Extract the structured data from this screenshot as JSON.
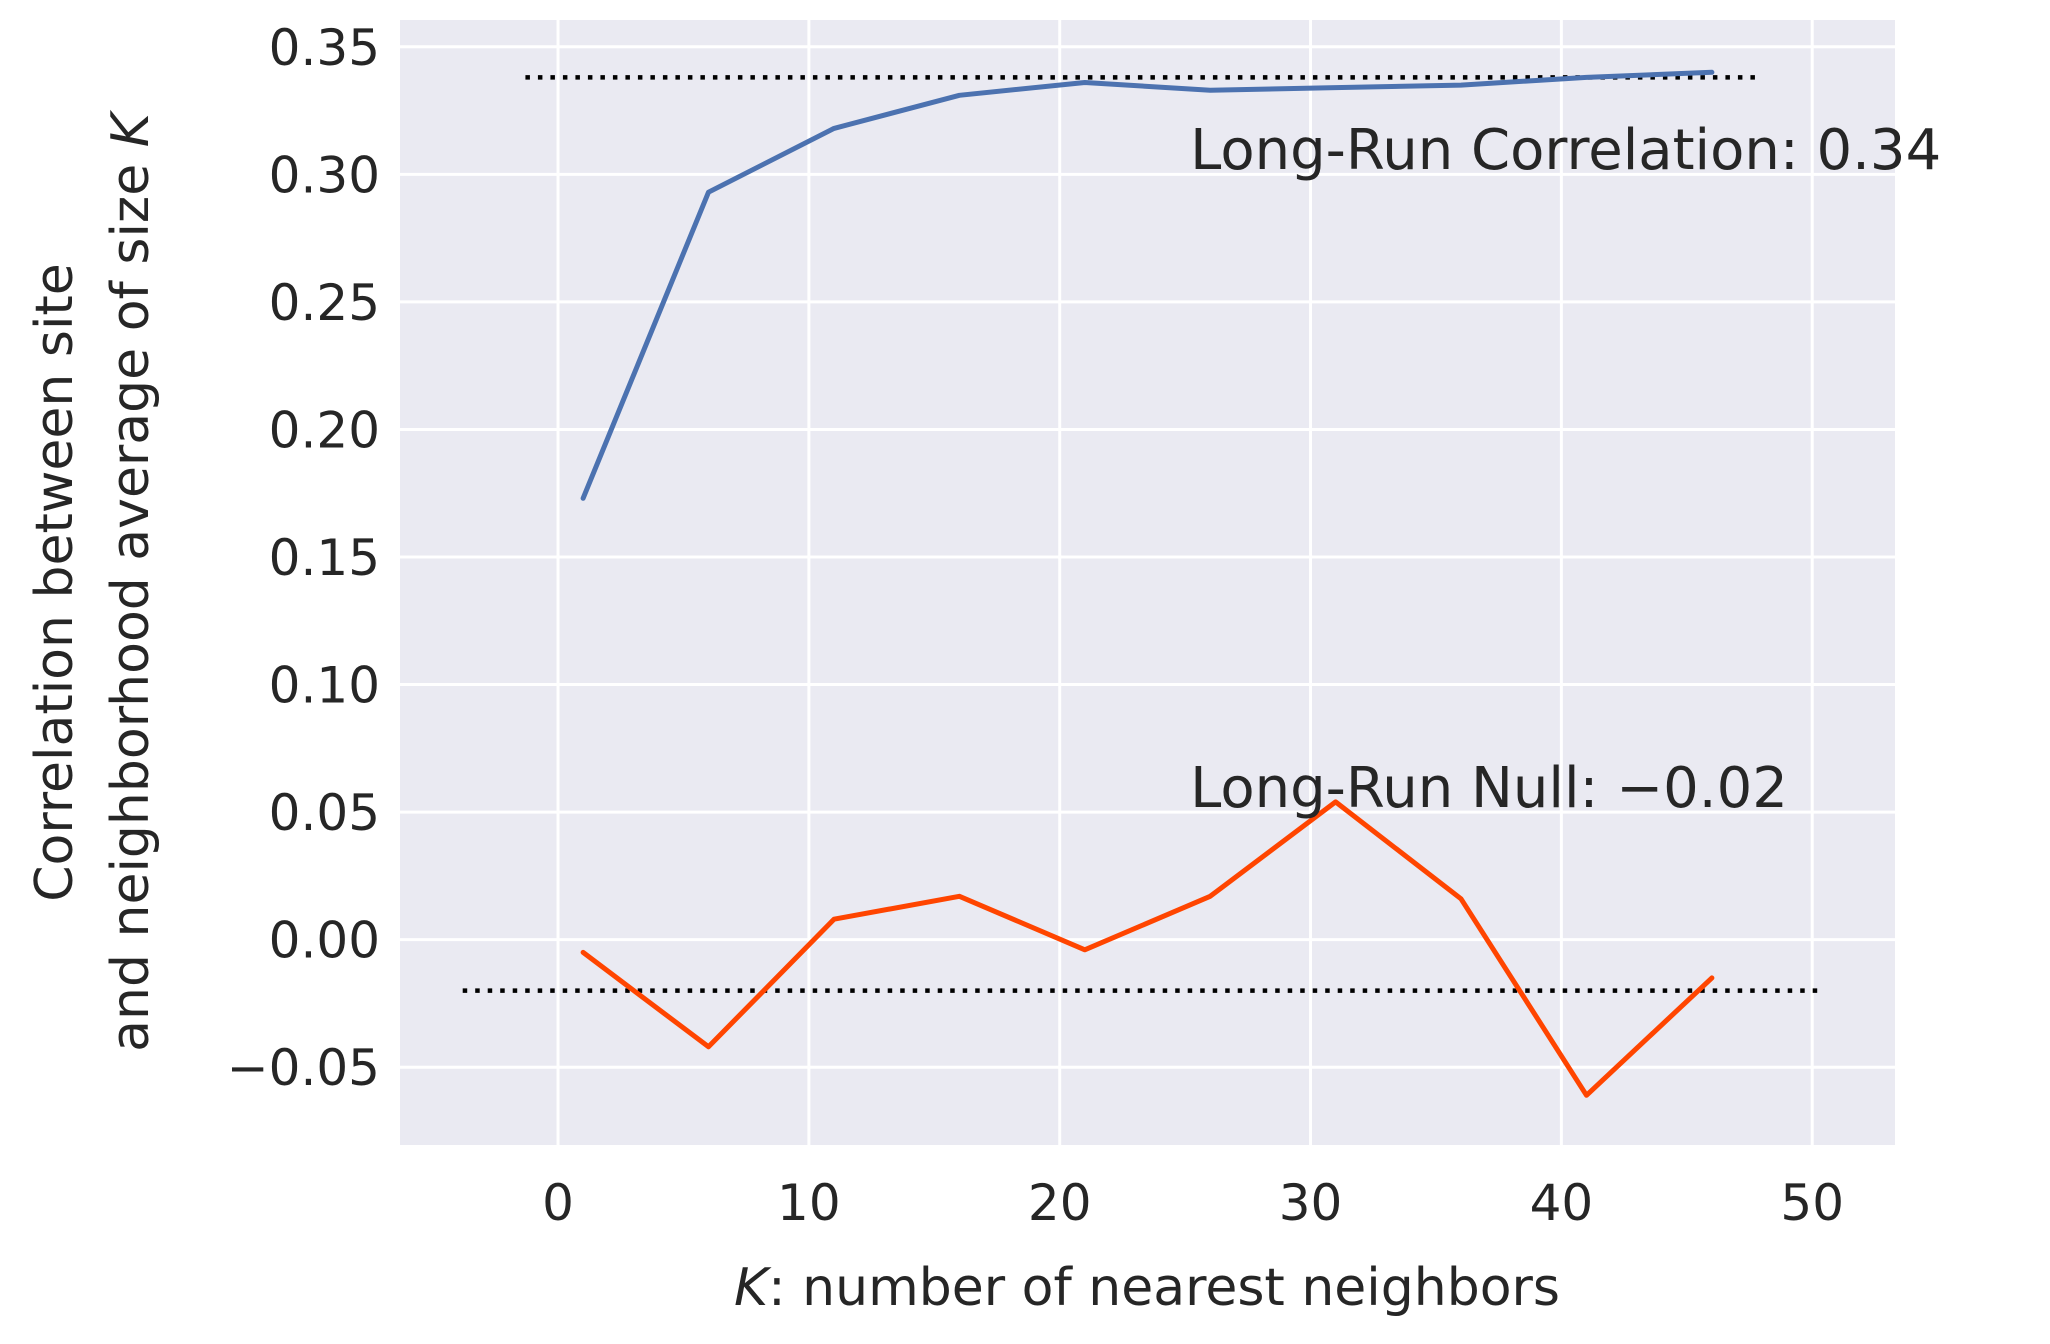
{
  "chart_data": {
    "type": "line",
    "xlabel_var": "K",
    "xlabel_rest": ": number of nearest neighbors",
    "ylabel_line1": "Correlation between site",
    "ylabel_line2_prefix": "and neighborhood average of size ",
    "ylabel_line2_var": "K",
    "xlim": [
      -6.3,
      53.3
    ],
    "ylim": [
      -0.0805,
      0.3605
    ],
    "xticks": [
      0,
      10,
      20,
      30,
      40,
      50
    ],
    "xtick_labels": [
      "0",
      "10",
      "20",
      "30",
      "40",
      "50"
    ],
    "yticks": [
      -0.05,
      0.0,
      0.05,
      0.1,
      0.15,
      0.2,
      0.25,
      0.3,
      0.35
    ],
    "ytick_labels": [
      "−0.05",
      "0.00",
      "0.05",
      "0.10",
      "0.15",
      "0.20",
      "0.25",
      "0.30",
      "0.35"
    ],
    "grid": true,
    "series": [
      {
        "color": "#4c72b0",
        "x": [
          1,
          6,
          11,
          16,
          21,
          26,
          31,
          36,
          41,
          46
        ],
        "y": [
          0.173,
          0.293,
          0.318,
          0.331,
          0.336,
          0.333,
          0.334,
          0.335,
          0.338,
          0.34
        ]
      },
      {
        "color": "#ff4500",
        "x": [
          1,
          6,
          11,
          16,
          21,
          26,
          31,
          36,
          41,
          46
        ],
        "y": [
          -0.005,
          -0.042,
          0.008,
          0.017,
          -0.004,
          0.017,
          0.054,
          0.016,
          -0.061,
          -0.015
        ]
      }
    ],
    "reference_lines": [
      {
        "y": 0.338,
        "x_range": [
          -1.3,
          47.8
        ],
        "style": "dotted",
        "color": "#000000"
      },
      {
        "y": -0.02,
        "x_range": [
          -3.8,
          50.3
        ],
        "style": "dotted",
        "color": "#000000"
      }
    ],
    "annotations": [
      {
        "text": "Long-Run Correlation: 0.34",
        "x": 25.2,
        "y": 0.302
      },
      {
        "text": "Long-Run Null: −0.02",
        "x": 25.2,
        "y": 0.052
      }
    ],
    "colors": {
      "plot_background": "#eaeaf2",
      "grid": "#ffffff",
      "text": "#262626"
    }
  }
}
